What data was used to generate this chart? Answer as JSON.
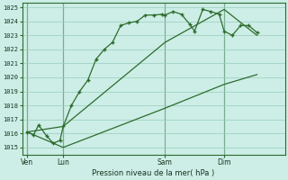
{
  "xlabel": "Pression niveau de la mer( hPa )",
  "ylim": [
    1014.5,
    1025.3
  ],
  "yticks": [
    1015,
    1016,
    1017,
    1018,
    1019,
    1020,
    1021,
    1022,
    1023,
    1024,
    1025
  ],
  "xlim": [
    0,
    16
  ],
  "bg_color": "#cceee6",
  "grid_color": "#99ccbb",
  "line_color": "#2d6b2d",
  "xtick_labels": [
    "Ven",
    "Lun",
    "Sam",
    "Dim"
  ],
  "xtick_positions": [
    0.3,
    2.5,
    8.7,
    12.3
  ],
  "vline_positions": [
    0.3,
    2.5,
    8.7,
    12.3
  ],
  "line1_x": [
    0.3,
    0.7,
    1.0,
    1.5,
    1.9,
    2.3,
    2.5,
    3.0,
    3.5,
    4.0,
    4.5,
    5.0,
    5.5,
    6.0,
    6.5,
    7.0,
    7.5,
    8.0,
    8.5,
    8.7,
    9.2,
    9.7,
    10.2,
    10.5,
    11.0,
    11.5,
    12.0,
    12.3,
    12.8,
    13.3,
    13.8,
    14.3
  ],
  "line1_y": [
    1016.1,
    1015.9,
    1016.6,
    1015.8,
    1015.3,
    1015.5,
    1016.5,
    1018.0,
    1019.0,
    1019.8,
    1021.3,
    1022.0,
    1022.5,
    1023.7,
    1023.9,
    1024.0,
    1024.45,
    1024.45,
    1024.5,
    1024.45,
    1024.7,
    1024.5,
    1023.8,
    1023.3,
    1024.85,
    1024.7,
    1024.5,
    1023.3,
    1023.0,
    1023.7,
    1023.7,
    1023.2
  ],
  "line2_x": [
    0.3,
    2.5,
    8.7,
    12.3,
    14.3
  ],
  "line2_y": [
    1016.1,
    1015.0,
    1017.8,
    1019.5,
    1020.2
  ],
  "line3_x": [
    0.3,
    2.5,
    8.7,
    12.3,
    14.3
  ],
  "line3_y": [
    1016.1,
    1016.5,
    1022.5,
    1024.85,
    1023.0
  ]
}
